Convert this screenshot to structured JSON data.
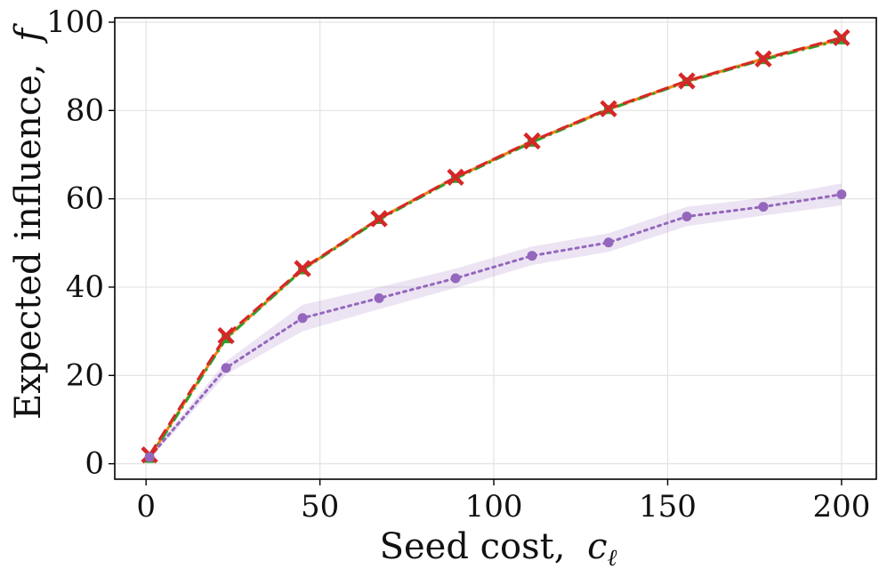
{
  "chart_data": {
    "type": "line",
    "title": "",
    "xlabel": {
      "text": "Seed cost,",
      "symbol": "c",
      "subscript": "ℓ"
    },
    "ylabel": {
      "text": "Expected influence,",
      "symbol": "f"
    },
    "xlim": [
      -9,
      210
    ],
    "ylim": [
      -3.5,
      101
    ],
    "xticks": [
      0,
      50,
      100,
      150,
      200
    ],
    "yticks": [
      0,
      20,
      40,
      60,
      80,
      100
    ],
    "grid": true,
    "x": [
      1,
      23,
      45,
      67,
      89,
      111,
      133,
      155.5,
      177.5,
      200
    ],
    "series": [
      {
        "name": "series-orange-solid",
        "color": "#ff7f0e",
        "style": "solid",
        "marker": "none",
        "values": [
          1.5,
          28.5,
          44,
          55.5,
          64.8,
          73,
          80.3,
          86.6,
          91.7,
          96.2
        ],
        "band": [
          [
            1.0,
            2.0
          ],
          [
            28.0,
            29.0
          ],
          [
            43.5,
            44.5
          ],
          [
            55.0,
            56.0
          ],
          [
            64.3,
            65.3
          ],
          [
            72.5,
            73.5
          ],
          [
            79.8,
            80.8
          ],
          [
            86.1,
            87.1
          ],
          [
            91.2,
            92.2
          ],
          [
            95.7,
            96.7
          ]
        ],
        "band_color": "#ff7f0e"
      },
      {
        "name": "series-green-dashdot",
        "color": "#2ca02c",
        "style": "dashdot",
        "marker": "square",
        "values": [
          1.2,
          28.3,
          43.9,
          55.3,
          64.6,
          72.8,
          80.2,
          86.5,
          91.5,
          96
        ]
      },
      {
        "name": "series-red-dashed",
        "color": "#d62728",
        "style": "dashed",
        "marker": "x",
        "values": [
          2,
          29,
          44.2,
          55.5,
          64.9,
          73.1,
          80.4,
          86.7,
          91.7,
          96.5
        ]
      },
      {
        "name": "series-purple-dotted",
        "color": "#9467bd",
        "style": "dotted",
        "marker": "circle",
        "values": [
          1.5,
          21.7,
          33,
          37.5,
          42,
          47.1,
          50.1,
          56,
          58.2,
          61
        ],
        "band": [
          [
            1.0,
            2.0
          ],
          [
            20.2,
            23.2
          ],
          [
            30.0,
            36.0
          ],
          [
            35.0,
            40.0
          ],
          [
            39.8,
            44.2
          ],
          [
            45.0,
            49.2
          ],
          [
            48.0,
            52.2
          ],
          [
            53.8,
            58.2
          ],
          [
            56.2,
            60.2
          ],
          [
            58.5,
            63.5
          ]
        ],
        "band_color": "#9467bd"
      }
    ]
  }
}
